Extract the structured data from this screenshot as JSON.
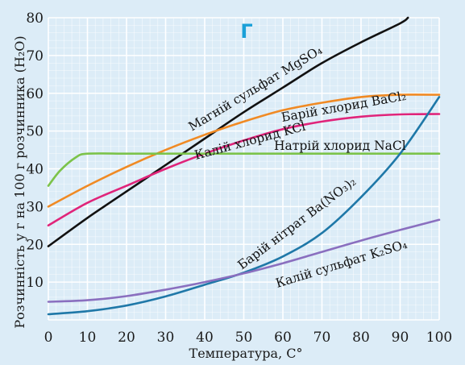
{
  "chart_data": {
    "type": "line",
    "panel_marker": "Г",
    "xlabel": "Температура, С°",
    "ylabel": "Розчинність у г на 100 г розчинника (H₂O)",
    "xlim": [
      0,
      100
    ],
    "ylim": [
      0,
      80
    ],
    "x_ticks": [
      0,
      10,
      20,
      30,
      40,
      50,
      60,
      70,
      80,
      90,
      100
    ],
    "y_ticks": [
      10,
      20,
      30,
      40,
      50,
      60,
      70,
      80
    ],
    "grid": true,
    "legend": "inline labels",
    "colors": {
      "background": "#dcecf7",
      "grid": "#ffffff",
      "marker": "#1aa0d8"
    },
    "series": [
      {
        "name": "Магній сульфат MgSO₄",
        "color": "#111111",
        "x": [
          0,
          10,
          20,
          30,
          40,
          50,
          60,
          70,
          80,
          90,
          92
        ],
        "y": [
          19.5,
          27,
          34,
          41,
          48,
          55,
          61.5,
          68,
          73.5,
          78.5,
          80
        ]
      },
      {
        "name": "Барій хлорид BaCl₂",
        "color": "#f08a24",
        "x": [
          0,
          10,
          20,
          30,
          40,
          50,
          60,
          70,
          80,
          90,
          100
        ],
        "y": [
          30,
          35.5,
          40.5,
          45,
          49,
          52.5,
          55.5,
          57.5,
          59,
          59.6,
          59.6
        ]
      },
      {
        "name": "Калій хлорид KCl",
        "color": "#e0247a",
        "x": [
          0,
          10,
          20,
          30,
          40,
          50,
          60,
          70,
          80,
          90,
          100
        ],
        "y": [
          25,
          31,
          35.5,
          40,
          44,
          47.5,
          50.5,
          52.5,
          53.8,
          54.4,
          54.5
        ]
      },
      {
        "name": "Натрій хлорид NaCl",
        "color": "#7cc34a",
        "x": [
          0,
          3,
          7,
          10,
          20,
          30,
          40,
          50,
          60,
          70,
          80,
          90,
          100
        ],
        "y": [
          35.5,
          39.5,
          43,
          44,
          44,
          44,
          44,
          44,
          44,
          44,
          44,
          44,
          44
        ]
      },
      {
        "name": "Барій нітрат Ba(NO₃)₂",
        "color": "#1f78a8",
        "x": [
          0,
          10,
          20,
          30,
          40,
          50,
          60,
          70,
          80,
          90,
          100
        ],
        "y": [
          1.5,
          2.3,
          3.8,
          6.2,
          9.3,
          12.5,
          16.8,
          23,
          32.5,
          44,
          59
        ]
      },
      {
        "name": "Калій сульфат K₂SO₄",
        "color": "#8a6fbf",
        "x": [
          0,
          10,
          20,
          30,
          40,
          50,
          60,
          70,
          80,
          90,
          100
        ],
        "y": [
          4.8,
          5.2,
          6.3,
          8,
          10,
          12.3,
          15,
          18,
          21,
          23.8,
          26.5
        ]
      }
    ]
  }
}
